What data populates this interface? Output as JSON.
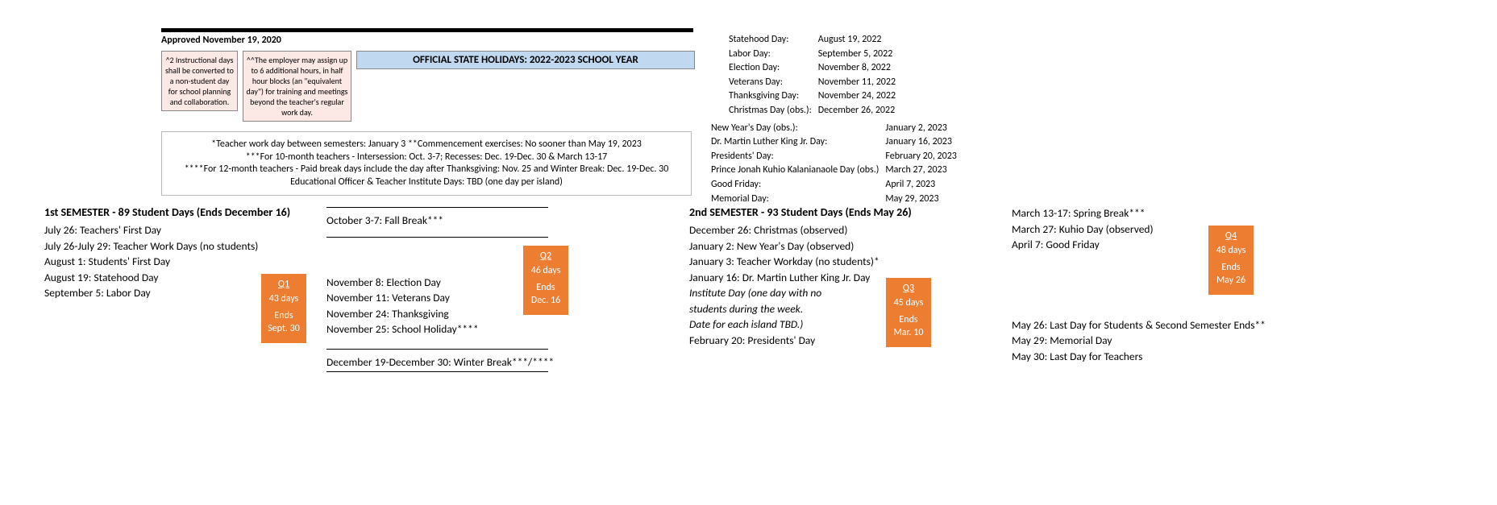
{
  "header": {
    "approved": "Approved November 19, 2020",
    "pink1": "^2 Instructional days shall be converted to a non-student day for school planning and collaboration.",
    "pink2": "^^The employer may assign up to 6 additional hours, in half hour blocks (an \"equivalent day\") for training and meetings beyond the teacher's regular work day.",
    "banner": "OFFICIAL STATE HOLIDAYS:  2022-2023 SCHOOL YEAR",
    "note1": "*Teacher work day between semesters: January 3   **Commencement exercises: No sooner than May 19, 2023",
    "note2": "***For 10-month teachers - Intersession: Oct. 3-7; Recesses: Dec. 19-Dec. 30 & March 13-17",
    "note3": "****For 12-month teachers - Paid break days include the day after Thanksgiving: Nov. 25 and Winter Break: Dec. 19-Dec. 30",
    "note4": "Educational Officer & Teacher Institute Days: TBD (one day per island)"
  },
  "holidays1": [
    [
      "Statehood Day:",
      "August 19, 2022"
    ],
    [
      "Labor Day:",
      "September 5, 2022"
    ],
    [
      "Election Day:",
      "November 8, 2022"
    ],
    [
      "Veterans Day:",
      "November 11, 2022"
    ],
    [
      "Thanksgiving Day:",
      "November 24, 2022"
    ],
    [
      "Christmas Day (obs.):",
      "December 26, 2022"
    ]
  ],
  "holidays2": [
    [
      "New Year's Day (obs.):",
      "January 2, 2023"
    ],
    [
      "Dr. Martin Luther King Jr. Day:",
      "January 16, 2023"
    ],
    [
      "Presidents' Day:",
      "February 20, 2023"
    ],
    [
      "Prince Jonah Kuhio Kalanianaole Day (obs.)",
      "March 27, 2023"
    ],
    [
      "Good Friday:",
      "April 7, 2023"
    ],
    [
      "Memorial Day:",
      "May 29, 2023"
    ]
  ],
  "sem1": {
    "title": "1st SEMESTER - 89 Student Days (Ends December 16)",
    "colA": [
      "July 26: Teachers' First Day",
      "July 26-July 29: Teacher Work Days (no students)",
      "August 1: Students' First Day",
      "August 19: Statehood Day"
    ],
    "colA_after": "September 5: Labor Day",
    "colB_top": "October 3-7: Fall Break***",
    "colB_mid": [
      "November 8: Election Day",
      "November 11: Veterans Day",
      "November 24: Thanksgiving",
      "November 25: School Holiday****"
    ],
    "colB_bot": "December 19-December 30: Winter Break***/****"
  },
  "sem2": {
    "title": "2nd SEMESTER - 93 Student Days (Ends May 26)",
    "colA": [
      "December 26: Christmas (observed)",
      "January 2: New Year's Day (observed)",
      "January 3: Teacher Workday (no students)*",
      "January 16: Dr. Martin Luther King Jr. Day"
    ],
    "colA_italic": [
      "Institute Day (one day with no",
      "students during the week.",
      "Date for each island TBD.)"
    ],
    "colA_after": "February 20: Presidents' Day",
    "colB_top": [
      "March 13-17: Spring Break***"
    ],
    "colB_mid": [
      "March 27: Kuhio Day (observed)",
      "April 7: Good Friday"
    ],
    "colB_bot": [
      "May 26: Last Day for Students & Second Semester Ends**",
      "May 29: Memorial Day",
      "May 30:  Last Day for Teachers"
    ]
  },
  "quarters": {
    "q1": {
      "label": "Q1",
      "days": "43 days",
      "ends": "Ends Sept. 30",
      "color": "#ed7d31"
    },
    "q2": {
      "label": "Q2",
      "days": "46 days",
      "ends": "Ends Dec. 16",
      "color": "#ed7d31"
    },
    "q3": {
      "label": "Q3",
      "days": "45 days",
      "ends": "Ends Mar. 10",
      "color": "#ed7d31"
    },
    "q4": {
      "label": "Q4",
      "days": "48 days",
      "ends": "Ends May 26",
      "color": "#ed7d31"
    }
  }
}
